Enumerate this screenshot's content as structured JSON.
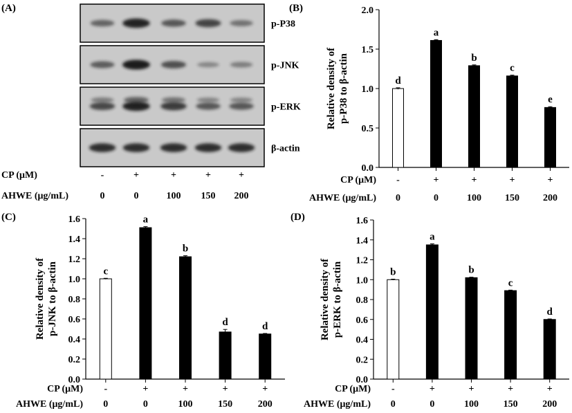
{
  "figure": {
    "panel_labels": [
      "(A)",
      "(B)",
      "(C)",
      "(D)"
    ]
  },
  "blot": {
    "rows": [
      {
        "label": "p-P38",
        "intensities": [
          0.45,
          0.95,
          0.55,
          0.7,
          0.35
        ]
      },
      {
        "label": "p-JNK",
        "intensities": [
          0.5,
          1.0,
          0.6,
          0.18,
          0.25
        ]
      },
      {
        "label": "p-ERK",
        "intensities": [
          0.65,
          0.95,
          0.75,
          0.55,
          0.55
        ]
      },
      {
        "label": "β-actin",
        "intensities": [
          0.85,
          0.85,
          0.85,
          0.85,
          0.85
        ]
      }
    ],
    "conditions": {
      "cp_label": "CP (μM)",
      "cp_values": [
        "-",
        "+",
        "+",
        "+",
        "+"
      ],
      "ahwe_label": "AHWE (μg/mL)",
      "ahwe_values": [
        "0",
        "0",
        "100",
        "150",
        "200"
      ]
    },
    "colors": {
      "band": "#1a1a1a",
      "background": "#c9c9c9",
      "frame": "#000000"
    }
  },
  "chart_data": [
    {
      "type": "bar",
      "panel": "(B)",
      "title": "",
      "xlabel": "",
      "ylabel": "Relative density of p-P38 to β-actin",
      "ylabel_lines": [
        "Relative density of",
        "p-P38 to β-actin"
      ],
      "ylim": [
        0,
        2.0
      ],
      "yticks": [
        "0.0",
        "0.5",
        "1.0",
        "1.5",
        "2.0"
      ],
      "ytick_values": [
        0,
        0.5,
        1.0,
        1.5,
        2.0
      ],
      "categories": [
        "0",
        "0",
        "100",
        "150",
        "200"
      ],
      "cp_label": "CP (μM)",
      "cp_values": [
        "-",
        "+",
        "+",
        "+",
        "+"
      ],
      "ahwe_label": "AHWE (μg/mL)",
      "values": [
        1.0,
        1.61,
        1.29,
        1.16,
        0.76
      ],
      "errors": [
        0.01,
        0.01,
        0.01,
        0.01,
        0.01
      ],
      "letters": [
        "d",
        "a",
        "b",
        "c",
        "e"
      ],
      "fills": [
        "#ffffff",
        "#000000",
        "#000000",
        "#000000",
        "#000000"
      ],
      "grid": false
    },
    {
      "type": "bar",
      "panel": "(C)",
      "title": "",
      "xlabel": "",
      "ylabel": "Relative density of p-JNK to β-actin",
      "ylabel_lines": [
        "Relative density of",
        "p-JNK to β-actin"
      ],
      "ylim": [
        0,
        1.6
      ],
      "yticks": [
        "0.0",
        "0.2",
        "0.4",
        "0.6",
        "0.8",
        "1.0",
        "1.2",
        "1.4",
        "1.6"
      ],
      "ytick_values": [
        0,
        0.2,
        0.4,
        0.6,
        0.8,
        1.0,
        1.2,
        1.4,
        1.6
      ],
      "categories": [
        "0",
        "0",
        "100",
        "150",
        "200"
      ],
      "cp_label": "CP (μM)",
      "cp_values": [
        "-",
        "+",
        "+",
        "+",
        "+"
      ],
      "ahwe_label": "AHWE (μg/mL)",
      "values": [
        1.0,
        1.51,
        1.22,
        0.47,
        0.45
      ],
      "errors": [
        0.005,
        0.01,
        0.01,
        0.025,
        0.005
      ],
      "letters": [
        "c",
        "a",
        "b",
        "d",
        "d"
      ],
      "fills": [
        "#ffffff",
        "#000000",
        "#000000",
        "#000000",
        "#000000"
      ],
      "grid": false
    },
    {
      "type": "bar",
      "panel": "(D)",
      "title": "",
      "xlabel": "",
      "ylabel": "Relative density of p-ERK to β-actin",
      "ylabel_lines": [
        "Relative density of",
        "p-ERK to β-actin"
      ],
      "ylim": [
        0,
        1.6
      ],
      "yticks": [
        "0.0",
        "0.2",
        "0.4",
        "0.6",
        "0.8",
        "1.0",
        "1.2",
        "1.4",
        "1.6"
      ],
      "ytick_values": [
        0,
        0.2,
        0.4,
        0.6,
        0.8,
        1.0,
        1.2,
        1.4,
        1.6
      ],
      "categories": [
        "0",
        "0",
        "100",
        "150",
        "200"
      ],
      "cp_label": "CP (μM)",
      "cp_values": [
        "-",
        "+",
        "+",
        "+",
        "+"
      ],
      "ahwe_label": "AHWE (μg/mL)",
      "values": [
        1.0,
        1.35,
        1.02,
        0.89,
        0.6
      ],
      "errors": [
        0.005,
        0.01,
        0.005,
        0.005,
        0.005
      ],
      "letters": [
        "b",
        "a",
        "b",
        "c",
        "d"
      ],
      "fills": [
        "#ffffff",
        "#000000",
        "#000000",
        "#000000",
        "#000000"
      ],
      "grid": false
    }
  ]
}
